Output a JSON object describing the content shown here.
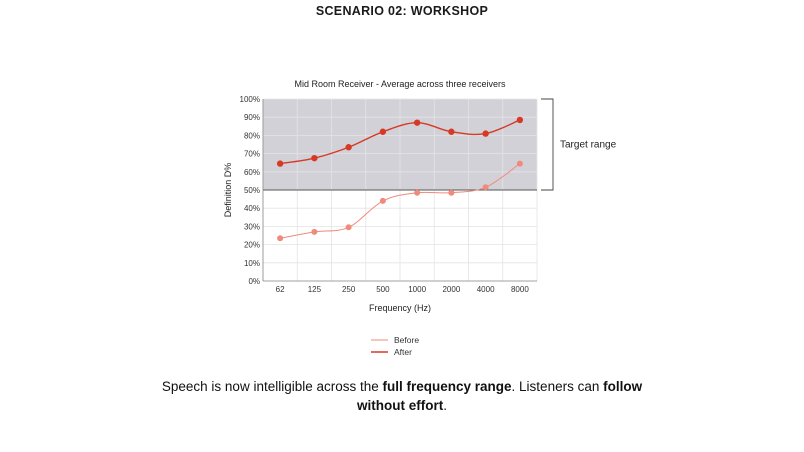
{
  "page": {
    "title": "SCENARIO 02: WORKSHOP"
  },
  "chart_data": {
    "type": "line",
    "title": "Mid Room Receiver - Average across three receivers",
    "xlabel": "Frequency (Hz)",
    "ylabel": "Definition D%",
    "categories": [
      "62",
      "125",
      "250",
      "500",
      "1000",
      "2000",
      "4000",
      "8000"
    ],
    "yticks": [
      "0%",
      "10%",
      "20%",
      "30%",
      "40%",
      "50%",
      "60%",
      "70%",
      "80%",
      "90%",
      "100%"
    ],
    "ylim": [
      0,
      100
    ],
    "grid": true,
    "legend_position": "bottom-center",
    "series": [
      {
        "name": "Before",
        "color": "#f08a7c",
        "values": [
          23.5,
          27,
          29.5,
          44,
          48.5,
          48.5,
          51.5,
          64.5
        ]
      },
      {
        "name": "After",
        "color": "#d63a26",
        "values": [
          64.5,
          67.5,
          73.5,
          82,
          87,
          82,
          81,
          88.5
        ]
      }
    ],
    "target_range": {
      "label": "Target range",
      "from": 50,
      "to": 100,
      "color": "#d3d1d8"
    }
  },
  "caption": {
    "part1": "Speech is now intelligible across the ",
    "bold1": "full frequency range",
    "part2": ". Listeners can ",
    "bold2": "follow without effort",
    "part3": "."
  }
}
